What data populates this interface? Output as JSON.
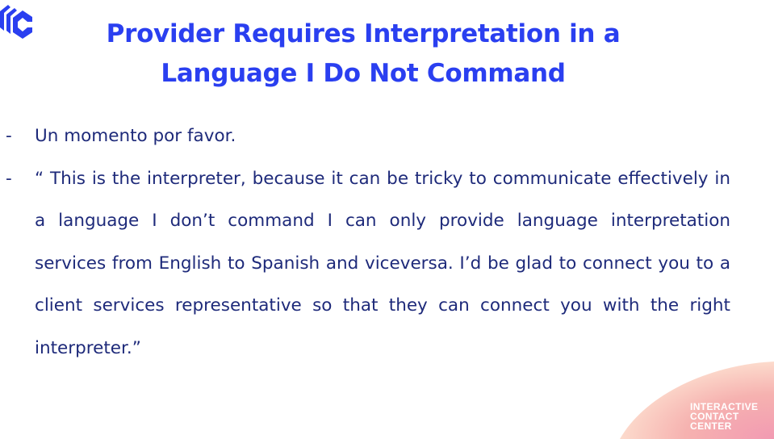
{
  "colors": {
    "title": "#2a3ff0",
    "body_text": "#1e2a7a",
    "logo": "#2a3ff0",
    "corner_gradient_start": "#ffd2c4",
    "corner_gradient_end": "#f4a0b4"
  },
  "logo": {
    "icon": "company-logo-icon"
  },
  "slide": {
    "title_line_1": "Provider Requires Interpretation in a",
    "title_line_2": "Language I Do Not Command",
    "bullets": [
      {
        "marker": "-",
        "text": "Un momento por favor."
      },
      {
        "marker": "-",
        "text": "“ This is the interpreter, because it can be tricky to communicate effectively in a language I don’t command I can only provide language interpretation services from English to Spanish and viceversa. I’d be glad to connect you to a client services representative so that they can connect you with the right interpreter.”"
      }
    ]
  },
  "brand": {
    "line_1": "INTERACTIVE",
    "line_2": "CONTACT",
    "line_3": "CENTER"
  }
}
